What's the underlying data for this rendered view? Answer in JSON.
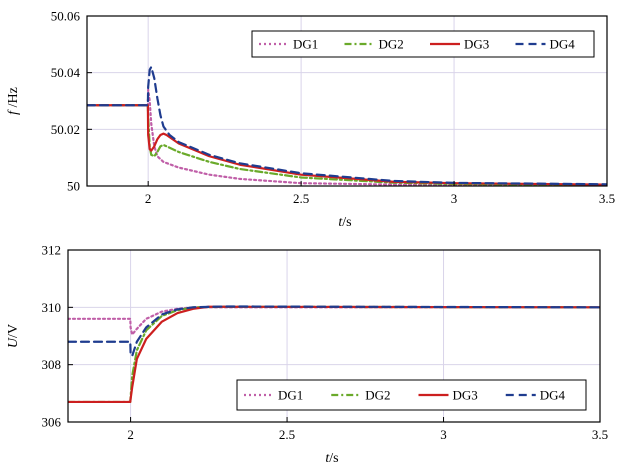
{
  "chart_data": [
    {
      "type": "line",
      "title": "",
      "xlabel_italic": "t",
      "xlabel_unit": "/s",
      "ylabel_italic": "f",
      "ylabel_unit": " /Hz",
      "xlim": [
        1.8,
        3.5
      ],
      "ylim": [
        50,
        50.06
      ],
      "xticks": [
        2,
        2.5,
        3,
        3.5
      ],
      "xtick_labels": [
        "2",
        "2.5",
        "3",
        "3.5"
      ],
      "yticks": [
        50,
        50.02,
        50.04,
        50.06
      ],
      "ytick_labels": [
        "50",
        "50.02",
        "50.04",
        "50.06"
      ],
      "grid": true,
      "legend_position": "top-right",
      "series": [
        {
          "name": "DG1",
          "color": "#c05fa8",
          "dash": "dotted",
          "x": [
            1.8,
            1.999,
            2.0,
            2.005,
            2.01,
            2.02,
            2.03,
            2.05,
            2.1,
            2.2,
            2.3,
            2.5,
            2.8,
            3.0,
            3.5
          ],
          "y": [
            50.0285,
            50.0285,
            50.034,
            50.03,
            50.022,
            50.014,
            50.0105,
            50.0085,
            50.0065,
            50.004,
            50.0025,
            50.001,
            50.0005,
            50.0003,
            50.0002
          ]
        },
        {
          "name": "DG2",
          "color": "#6aaa2a",
          "dash": "dashdot",
          "x": [
            1.8,
            1.999,
            2.0,
            2.005,
            2.01,
            2.02,
            2.03,
            2.04,
            2.05,
            2.06,
            2.1,
            2.2,
            2.3,
            2.5,
            2.8,
            3.0,
            3.5
          ],
          "y": [
            50.0285,
            50.0285,
            50.024,
            50.014,
            50.011,
            50.0105,
            50.012,
            50.014,
            50.0145,
            50.014,
            50.012,
            50.0085,
            50.006,
            50.003,
            50.0012,
            50.0007,
            50.0003
          ]
        },
        {
          "name": "DG3",
          "color": "#cc1f1f",
          "dash": "solid",
          "x": [
            1.8,
            1.999,
            2.0,
            2.005,
            2.01,
            2.02,
            2.03,
            2.04,
            2.05,
            2.06,
            2.08,
            2.1,
            2.2,
            2.3,
            2.5,
            2.8,
            3.0,
            3.5
          ],
          "y": [
            50.0285,
            50.0285,
            50.018,
            50.013,
            50.0125,
            50.014,
            50.0165,
            50.018,
            50.0185,
            50.018,
            50.0165,
            50.015,
            50.0105,
            50.0075,
            50.004,
            50.0015,
            50.001,
            50.0005
          ]
        },
        {
          "name": "DG4",
          "color": "#1f3c8f",
          "dash": "dashed",
          "x": [
            1.8,
            1.999,
            2.0,
            2.005,
            2.01,
            2.02,
            2.03,
            2.04,
            2.05,
            2.07,
            2.1,
            2.2,
            2.3,
            2.5,
            2.8,
            3.0,
            3.5
          ],
          "y": [
            50.0285,
            50.0285,
            50.035,
            50.041,
            50.042,
            50.038,
            50.031,
            50.025,
            50.021,
            50.018,
            50.0155,
            50.011,
            50.008,
            50.0045,
            50.0018,
            50.0011,
            50.0006
          ]
        }
      ]
    },
    {
      "type": "line",
      "title": "",
      "xlabel_italic": "t",
      "xlabel_unit": "/s",
      "ylabel_italic": "U",
      "ylabel_unit": "/V",
      "xlim": [
        1.8,
        3.5
      ],
      "ylim": [
        306,
        312
      ],
      "xticks": [
        2,
        2.5,
        3,
        3.5
      ],
      "xtick_labels": [
        "2",
        "2.5",
        "3",
        "3.5"
      ],
      "yticks": [
        306,
        308,
        310,
        312
      ],
      "ytick_labels": [
        "306",
        "308",
        "310",
        "312"
      ],
      "grid": true,
      "legend_position": "bottom-right",
      "series": [
        {
          "name": "DG1",
          "color": "#c05fa8",
          "dash": "dotted",
          "x": [
            1.8,
            1.999,
            2.0,
            2.005,
            2.02,
            2.05,
            2.1,
            2.15,
            2.2,
            2.3,
            3.5
          ],
          "y": [
            309.6,
            309.6,
            309.3,
            309.05,
            309.25,
            309.6,
            309.85,
            309.95,
            310.0,
            310.0,
            310.0
          ]
        },
        {
          "name": "DG2",
          "color": "#6aaa2a",
          "dash": "dashdot",
          "x": [
            1.8,
            1.999,
            2.0,
            2.005,
            2.02,
            2.05,
            2.1,
            2.15,
            2.2,
            2.3,
            3.5
          ],
          "y": [
            306.7,
            306.7,
            306.85,
            307.6,
            308.5,
            309.2,
            309.7,
            309.9,
            310.0,
            310.02,
            310.0
          ]
        },
        {
          "name": "DG3",
          "color": "#cc1f1f",
          "dash": "solid",
          "x": [
            1.8,
            1.999,
            2.0,
            2.005,
            2.02,
            2.05,
            2.1,
            2.15,
            2.2,
            2.25,
            2.3,
            3.5
          ],
          "y": [
            306.7,
            306.7,
            306.8,
            307.2,
            308.2,
            308.9,
            309.5,
            309.8,
            309.95,
            310.02,
            310.02,
            310.0
          ]
        },
        {
          "name": "DG4",
          "color": "#1f3c8f",
          "dash": "dashed",
          "x": [
            1.8,
            1.999,
            2.0,
            2.005,
            2.02,
            2.05,
            2.1,
            2.15,
            2.2,
            2.3,
            3.5
          ],
          "y": [
            308.8,
            308.8,
            308.4,
            308.3,
            308.8,
            309.3,
            309.75,
            309.93,
            310.0,
            310.03,
            310.0
          ]
        }
      ]
    }
  ]
}
